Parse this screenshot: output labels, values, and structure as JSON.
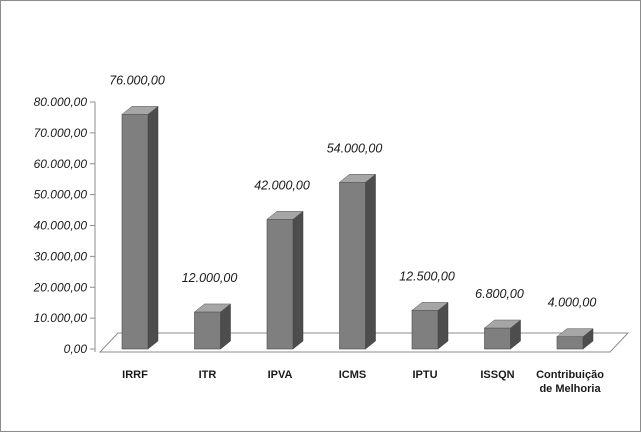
{
  "chart_data": {
    "type": "bar",
    "categories": [
      "IRRF",
      "ITR",
      "IPVA",
      "ICMS",
      "IPTU",
      "ISSQN",
      "Contribuição de Melhoria"
    ],
    "category_label_lines": [
      [
        "IRRF"
      ],
      [
        "ITR"
      ],
      [
        "IPVA"
      ],
      [
        "ICMS"
      ],
      [
        "IPTU"
      ],
      [
        "ISSQN"
      ],
      [
        "Contribuição",
        "de Melhoria"
      ]
    ],
    "values": [
      76000,
      12000,
      42000,
      54000,
      12500,
      6800,
      4000
    ],
    "data_labels": [
      "76.000,00",
      "12.000,00",
      "42.000,00",
      "54.000,00",
      "12.500,00",
      "6.800,00",
      "4.000,00"
    ],
    "yticks": [
      0,
      10000,
      20000,
      30000,
      40000,
      50000,
      60000,
      70000,
      80000
    ],
    "ytick_labels": [
      "0,00",
      "10.000,00",
      "20.000,00",
      "30.000,00",
      "40.000,00",
      "50.000,00",
      "60.000,00",
      "70.000,00",
      "80.000,00"
    ],
    "ylim": [
      0,
      80000
    ],
    "title": "",
    "xlabel": "",
    "ylabel": "",
    "grid": false,
    "legend": "none",
    "style": "3d-column",
    "colors": {
      "bar_front": "#7f7f7f",
      "bar_side": "#4d4d4d",
      "bar_top": "#a6a6a6",
      "floor": "#ffffff",
      "axis": "#8c8c8c"
    }
  }
}
